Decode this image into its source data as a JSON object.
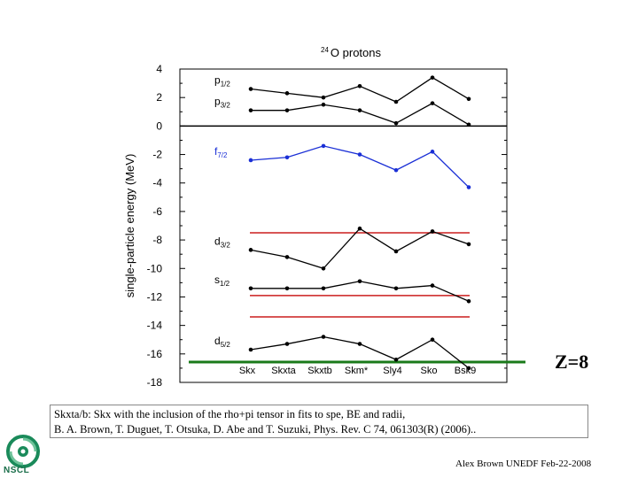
{
  "chart_data": {
    "type": "line",
    "title_mass": "24",
    "title": "O protons",
    "ylabel": "single-particle energy (MeV)",
    "ylim": [
      -18,
      4
    ],
    "yticks": [
      4,
      2,
      0,
      -2,
      -4,
      -6,
      -8,
      -10,
      -12,
      -14,
      -16,
      -18
    ],
    "categories": [
      "Skx",
      "Skxta",
      "Skxtb",
      "Skm*",
      "Sly4",
      "Sko",
      "Bsk9"
    ],
    "series": [
      {
        "name": "p",
        "sub": "1/2",
        "color": "#000000",
        "values": [
          2.6,
          2.3,
          2.0,
          2.8,
          1.7,
          3.4,
          1.9
        ]
      },
      {
        "name": "p",
        "sub": "3/2",
        "color": "#000000",
        "values": [
          1.1,
          1.1,
          1.5,
          1.1,
          0.2,
          1.6,
          0.1
        ]
      },
      {
        "name": "f",
        "sub": "7/2",
        "color": "#1a2fd6",
        "values": [
          -2.4,
          -2.2,
          -1.4,
          -2.0,
          -3.1,
          -1.8,
          -4.3
        ]
      },
      {
        "name": "d",
        "sub": "3/2",
        "color": "#000000",
        "values": [
          -8.7,
          -9.2,
          -10.0,
          -7.2,
          -8.8,
          -7.4,
          -8.3
        ]
      },
      {
        "name": "s",
        "sub": "1/2",
        "color": "#000000",
        "values": [
          -11.4,
          -11.4,
          -11.4,
          -10.9,
          -11.4,
          -11.2,
          -12.3
        ]
      },
      {
        "name": "d",
        "sub": "5/2",
        "color": "#000000",
        "values": [
          -15.7,
          -15.3,
          -14.8,
          -15.3,
          -16.4,
          -15.0,
          -17.0
        ]
      }
    ],
    "reference_lines": [
      {
        "y": -7.5,
        "color": "#cc1f1f"
      },
      {
        "y": -11.9,
        "color": "#cc1f1f"
      },
      {
        "y": -13.4,
        "color": "#cc1f1f"
      },
      {
        "y": 0,
        "color": "#000000"
      }
    ],
    "separator_color": "#1a7a1a",
    "grid": true
  },
  "annotation": "Z=8",
  "note": {
    "line1": "Skxta/b: Skx with the inclusion of the rho+pi tensor in fits to spe, BE and radii,",
    "line2": "B. A. Brown, T. Duguet, T. Otsuka, D. Abe and T. Suzuki, Phys. Rev. C 74, 061303(R) (2006).."
  },
  "logo_text": "NSCL",
  "credit": "Alex Brown UNEDF Feb-22-2008"
}
